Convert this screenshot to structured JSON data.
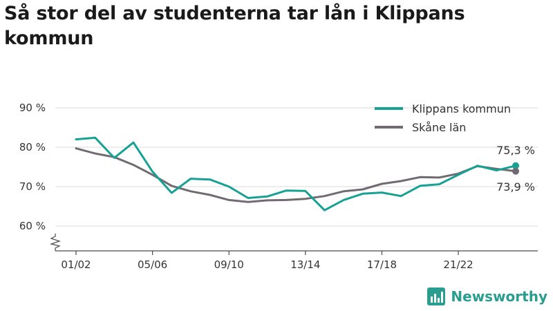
{
  "title": "Så stor del av studenterna tar lån i Klippans kommun",
  "brand": {
    "name": "Newsworthy"
  },
  "chart_data": {
    "type": "line",
    "title": "Så stor del av studenterna tar lån i Klippans kommun",
    "xlabel": "",
    "ylabel": "",
    "ylim": [
      55,
      92
    ],
    "y_ticks": [
      60,
      70,
      80,
      90
    ],
    "y_tick_labels": [
      "60 %",
      "70 %",
      "80 %",
      "90 %"
    ],
    "x": [
      "01/02",
      "02/03",
      "03/04",
      "04/05",
      "05/06",
      "06/07",
      "07/08",
      "08/09",
      "09/10",
      "10/11",
      "11/12",
      "12/13",
      "13/14",
      "14/15",
      "15/16",
      "16/17",
      "17/18",
      "18/19",
      "19/20",
      "20/21",
      "21/22",
      "22/23",
      "23/24",
      "24/25"
    ],
    "x_tick_labels": [
      "01/02",
      "05/06",
      "09/10",
      "13/14",
      "17/18",
      "21/22"
    ],
    "series": [
      {
        "name": "Klippans kommun",
        "color": "#17a195",
        "values": [
          82.0,
          82.4,
          77.3,
          81.2,
          73.8,
          68.4,
          72.0,
          71.8,
          70.0,
          67.1,
          67.5,
          69.0,
          68.9,
          64.0,
          66.6,
          68.2,
          68.5,
          67.6,
          70.2,
          70.6,
          73.0,
          75.3,
          74.1,
          75.3
        ],
        "end_label": "75,3 %"
      },
      {
        "name": "Skåne län",
        "color": "#6f6b70",
        "values": [
          79.7,
          78.4,
          77.5,
          75.5,
          73.0,
          70.2,
          68.8,
          67.9,
          66.6,
          66.1,
          66.5,
          66.6,
          66.9,
          67.6,
          68.8,
          69.3,
          70.7,
          71.4,
          72.4,
          72.3,
          73.3,
          75.2,
          74.5,
          73.9
        ],
        "end_label": "73,9 %"
      }
    ],
    "grid": true,
    "legend": "top-right"
  }
}
